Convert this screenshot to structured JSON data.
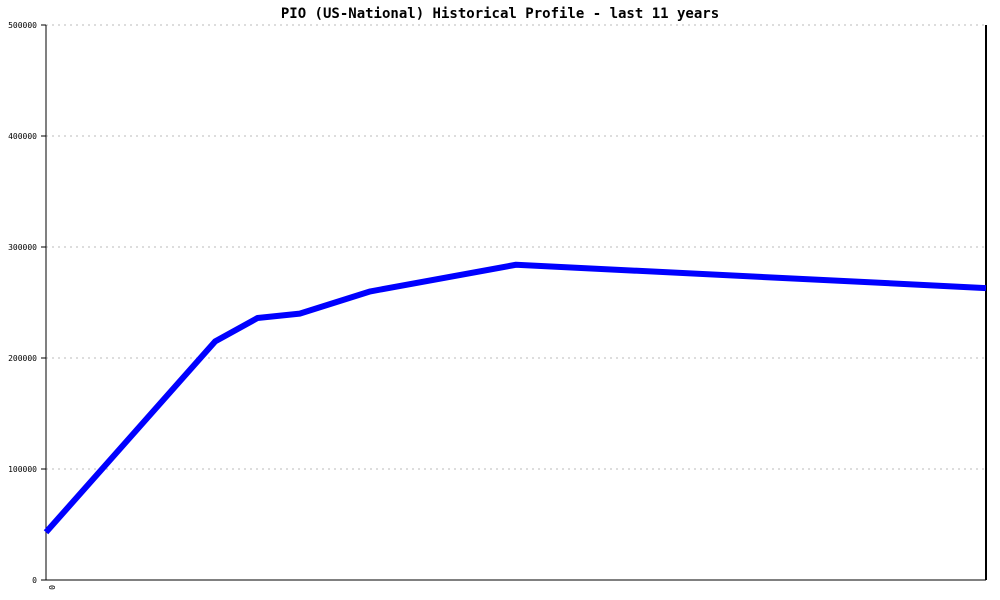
{
  "chart_data": {
    "type": "line",
    "title": "PIO (US-National) Historical Profile - last 11 years",
    "xlabel": "",
    "ylabel": "",
    "ylim": [
      0,
      500000
    ],
    "xlim": [
      0,
      10
    ],
    "x_tick_labels": [
      "0"
    ],
    "y_ticks": [
      0,
      100000,
      200000,
      300000,
      400000,
      500000
    ],
    "grid": "horizontal dotted",
    "series": [
      {
        "color": "#0000ff",
        "x": [
          0,
          1.8,
          2.25,
          2.7,
          3.45,
          5,
          10
        ],
        "values": [
          43000,
          215000,
          236000,
          240000,
          260000,
          284000,
          263000
        ]
      }
    ]
  }
}
